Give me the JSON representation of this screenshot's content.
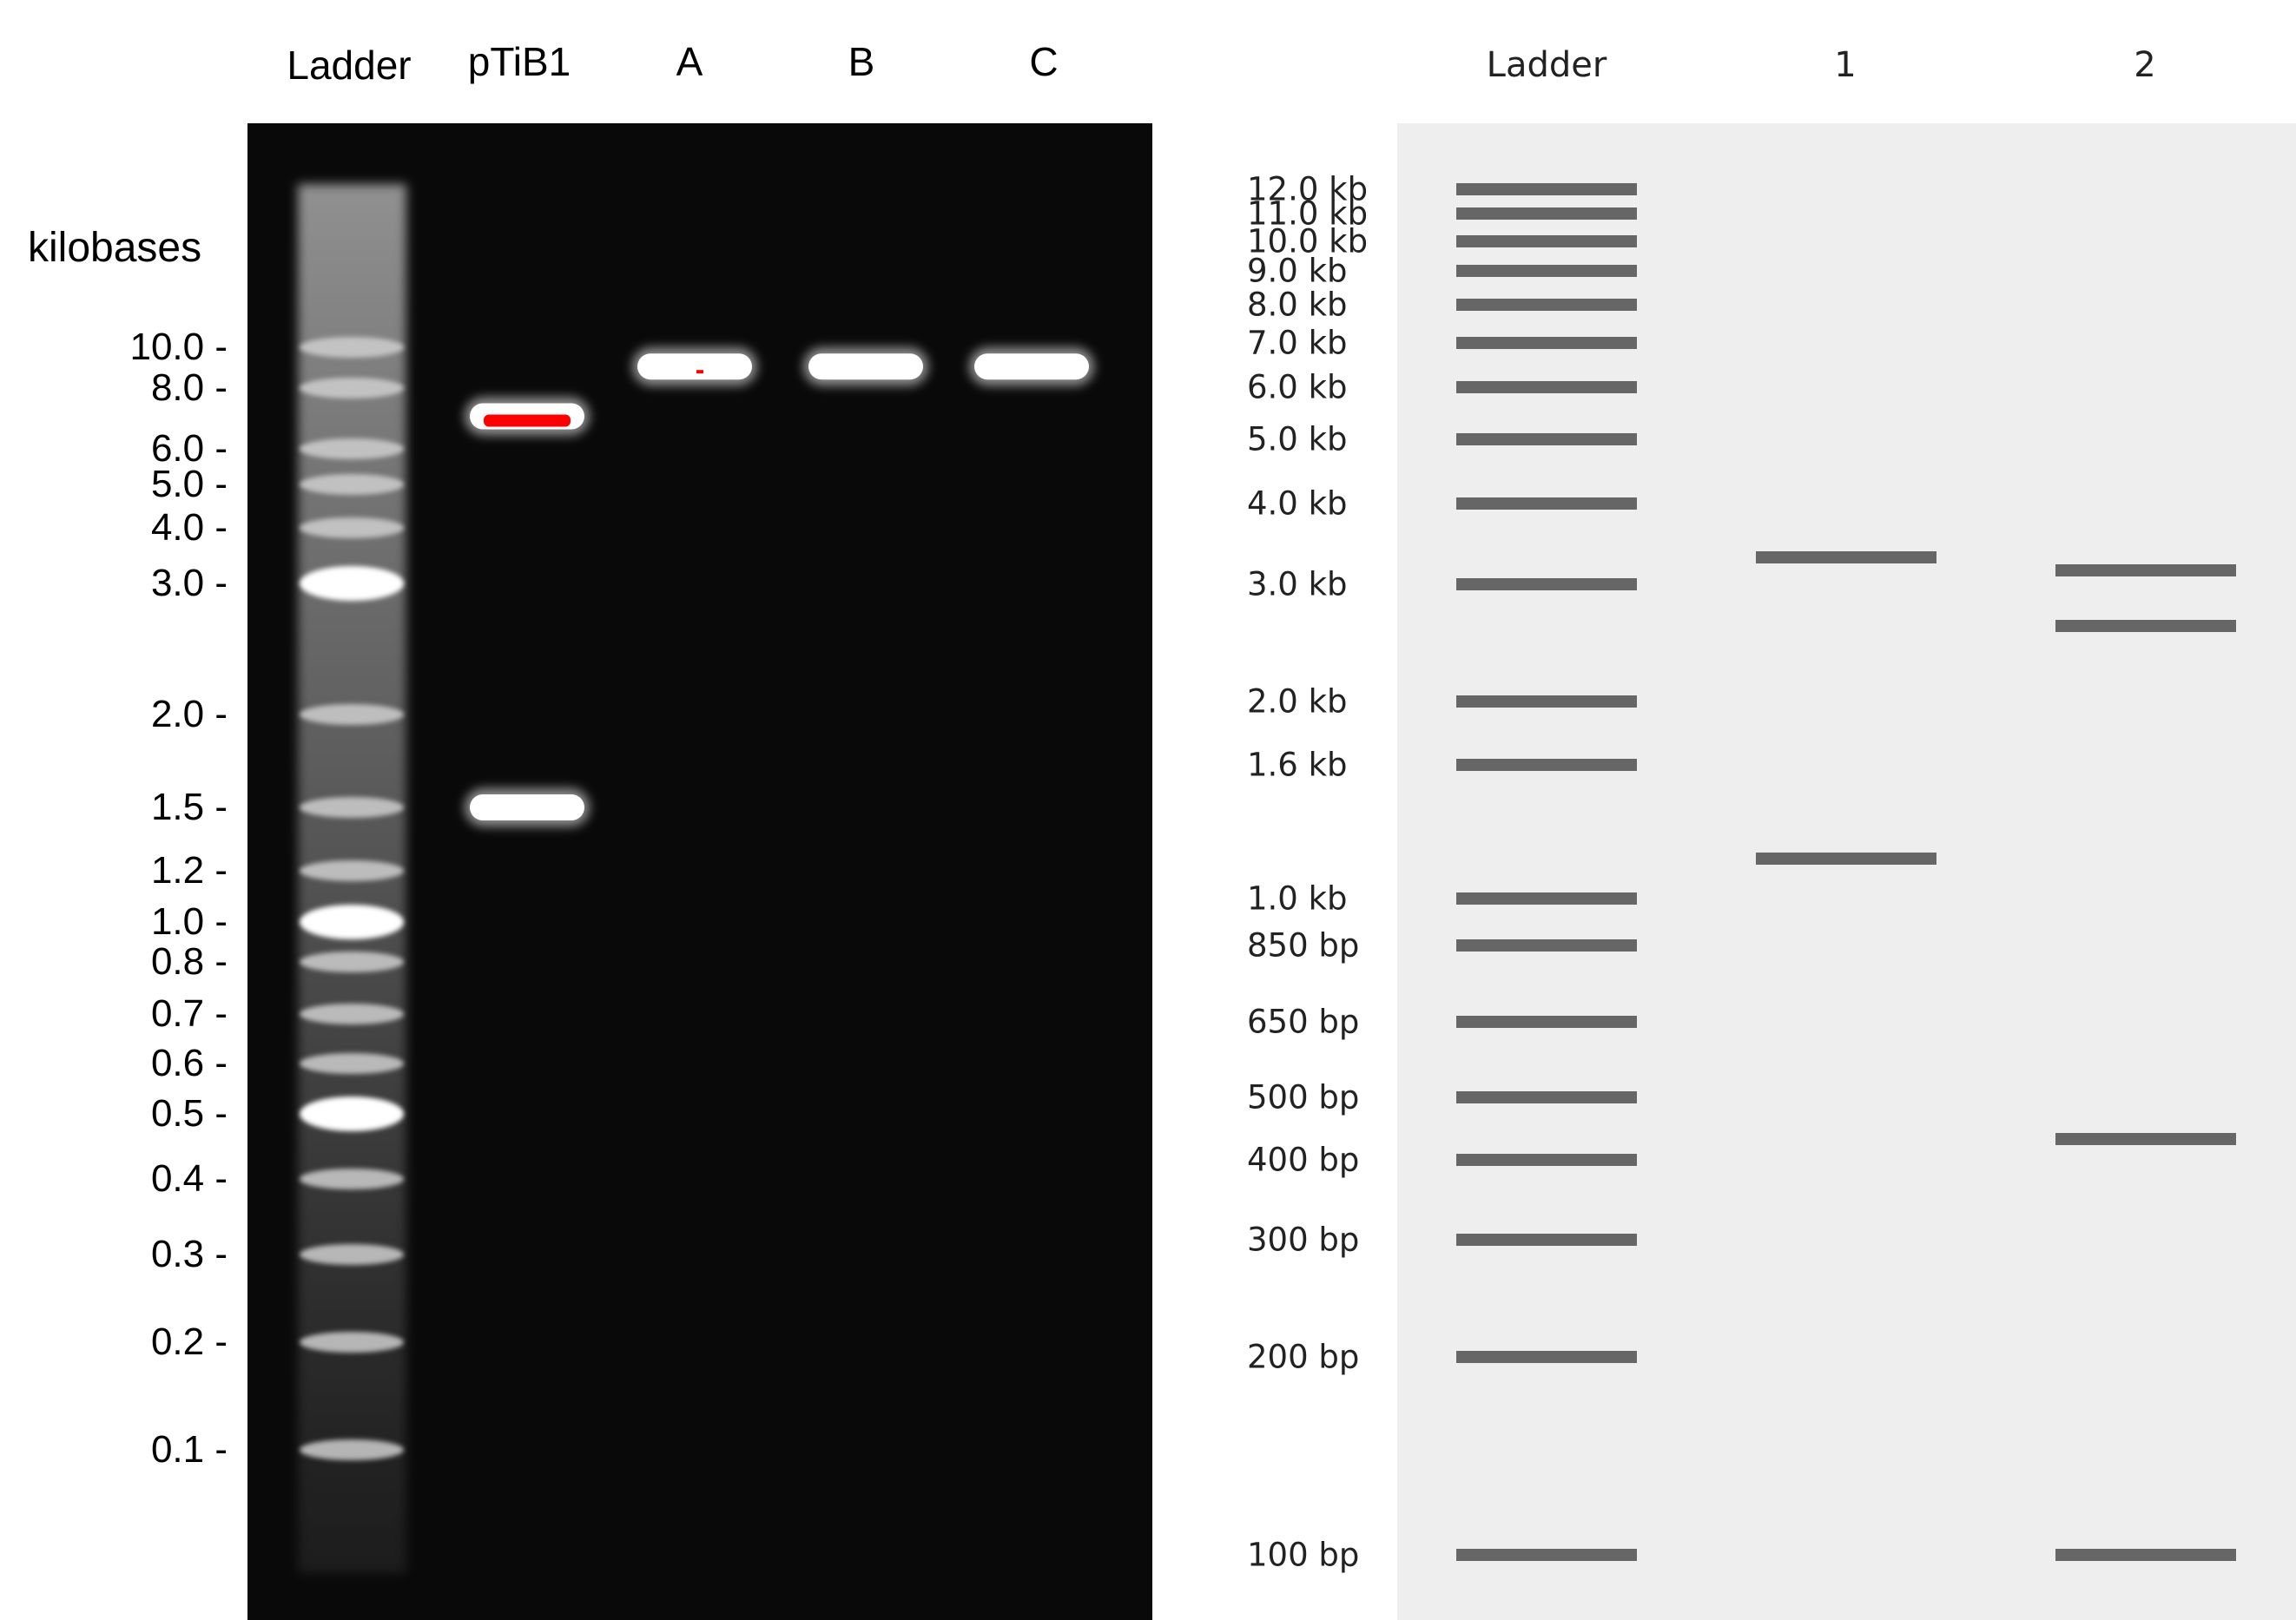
{
  "gel_photo": {
    "lane_labels": [
      "Ladder",
      "pTiB1",
      "A",
      "B",
      "C"
    ],
    "axis_title": "kilobases",
    "ticks": [
      {
        "label": "10.0 -",
        "kb": 10.0
      },
      {
        "label": "8.0 -",
        "kb": 8.0
      },
      {
        "label": "6.0 -",
        "kb": 6.0
      },
      {
        "label": "5.0 -",
        "kb": 5.0
      },
      {
        "label": "4.0 -",
        "kb": 4.0
      },
      {
        "label": "3.0 -",
        "kb": 3.0
      },
      {
        "label": "2.0 -",
        "kb": 2.0
      },
      {
        "label": "1.5 -",
        "kb": 1.5
      },
      {
        "label": "1.2 -",
        "kb": 1.2
      },
      {
        "label": "1.0 -",
        "kb": 1.0
      },
      {
        "label": "0.8 -",
        "kb": 0.8
      },
      {
        "label": "0.7 -",
        "kb": 0.7
      },
      {
        "label": "0.6 -",
        "kb": 0.6
      },
      {
        "label": "0.5 -",
        "kb": 0.5
      },
      {
        "label": "0.4 -",
        "kb": 0.4
      },
      {
        "label": "0.3 -",
        "kb": 0.3
      },
      {
        "label": "0.2 -",
        "kb": 0.2
      },
      {
        "label": "0.1 -",
        "kb": 0.1
      }
    ],
    "bands": [
      {
        "lane": "pTiB1",
        "kb": 7.0
      },
      {
        "lane": "pTiB1",
        "kb": 1.5
      },
      {
        "lane": "A",
        "kb": 9.0
      },
      {
        "lane": "B",
        "kb": 9.0
      },
      {
        "lane": "C",
        "kb": 9.0
      }
    ],
    "colors": {
      "gel": "#090909",
      "band": "#ffffff",
      "saturated": "#ff0000"
    }
  },
  "simulated_gel": {
    "lane_labels": [
      "Ladder",
      "1",
      "2"
    ],
    "ladder": [
      {
        "label": "12.0 kb",
        "bp": 12000
      },
      {
        "label": "11.0 kb",
        "bp": 11000
      },
      {
        "label": "10.0 kb",
        "bp": 10000
      },
      {
        "label": "9.0 kb",
        "bp": 9000
      },
      {
        "label": "8.0 kb",
        "bp": 8000
      },
      {
        "label": "7.0 kb",
        "bp": 7000
      },
      {
        "label": "6.0 kb",
        "bp": 6000
      },
      {
        "label": "5.0 kb",
        "bp": 5000
      },
      {
        "label": "4.0 kb",
        "bp": 4000
      },
      {
        "label": "3.0 kb",
        "bp": 3000
      },
      {
        "label": "2.0 kb",
        "bp": 2000
      },
      {
        "label": "1.6 kb",
        "bp": 1600
      },
      {
        "label": "1.0 kb",
        "bp": 1000
      },
      {
        "label": "850 bp",
        "bp": 850
      },
      {
        "label": "650 bp",
        "bp": 650
      },
      {
        "label": "500 bp",
        "bp": 500
      },
      {
        "label": "400 bp",
        "bp": 400
      },
      {
        "label": "300 bp",
        "bp": 300
      },
      {
        "label": "200 bp",
        "bp": 200
      },
      {
        "label": "100 bp",
        "bp": 100
      }
    ],
    "lanes": [
      {
        "name": "1",
        "bands_bp": [
          3300,
          1150
        ]
      },
      {
        "name": "2",
        "bands_bp": [
          3150,
          2600,
          430,
          100
        ]
      }
    ],
    "colors": {
      "background": "#eeeeee",
      "band": "#666666"
    }
  }
}
